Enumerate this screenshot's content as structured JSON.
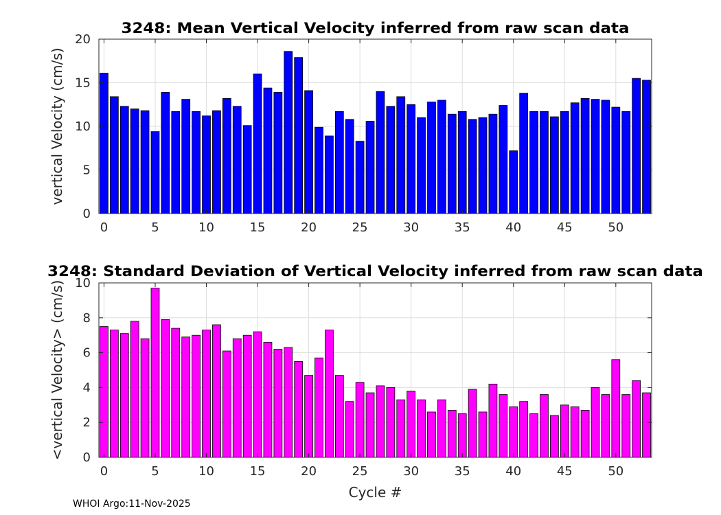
{
  "chart_data": [
    {
      "type": "bar",
      "title": "3248: Mean Vertical Velocity inferred from raw scan data",
      "xlabel": "",
      "ylabel": "vertical Velocity (cm/s)",
      "x": [
        0,
        1,
        2,
        3,
        4,
        5,
        6,
        7,
        8,
        9,
        10,
        11,
        12,
        13,
        14,
        15,
        16,
        17,
        18,
        19,
        20,
        21,
        22,
        23,
        24,
        25,
        26,
        27,
        28,
        29,
        30,
        31,
        32,
        33,
        34,
        35,
        36,
        37,
        38,
        39,
        40,
        41,
        42,
        43,
        44,
        45,
        46,
        47,
        48,
        49,
        50,
        51,
        52,
        53
      ],
      "values": [
        16.1,
        13.4,
        12.3,
        12.0,
        11.8,
        9.4,
        13.9,
        11.7,
        13.1,
        11.7,
        11.2,
        11.8,
        13.2,
        12.3,
        10.1,
        16.0,
        14.4,
        13.9,
        18.6,
        17.9,
        14.1,
        9.9,
        8.9,
        11.7,
        10.8,
        8.3,
        10.6,
        14.0,
        12.3,
        13.4,
        12.5,
        11.0,
        12.8,
        13.0,
        11.4,
        11.7,
        10.8,
        11.0,
        11.4,
        12.4,
        7.2,
        13.8,
        11.7,
        11.7,
        11.1,
        11.7,
        12.7,
        13.2,
        13.1,
        13.0,
        12.2,
        11.7,
        15.5,
        15.3
      ],
      "color": "#0000ff",
      "xlim": [
        -0.5,
        53.5
      ],
      "ylim": [
        0,
        20
      ],
      "xticks": [
        0,
        5,
        10,
        15,
        20,
        25,
        30,
        35,
        40,
        45,
        50
      ],
      "yticks": [
        0,
        5,
        10,
        15,
        20
      ],
      "grid": true
    },
    {
      "type": "bar",
      "title": "3248: Standard Deviation of Vertical Velocity inferred from raw scan data",
      "xlabel": "Cycle #",
      "ylabel": "<vertical Velocity> (cm/s)",
      "x": [
        0,
        1,
        2,
        3,
        4,
        5,
        6,
        7,
        8,
        9,
        10,
        11,
        12,
        13,
        14,
        15,
        16,
        17,
        18,
        19,
        20,
        21,
        22,
        23,
        24,
        25,
        26,
        27,
        28,
        29,
        30,
        31,
        32,
        33,
        34,
        35,
        36,
        37,
        38,
        39,
        40,
        41,
        42,
        43,
        44,
        45,
        46,
        47,
        48,
        49,
        50,
        51,
        52,
        53
      ],
      "values": [
        7.5,
        7.3,
        7.1,
        7.8,
        6.8,
        9.7,
        7.9,
        7.4,
        6.9,
        7.0,
        7.3,
        7.6,
        6.1,
        6.8,
        7.0,
        7.2,
        6.6,
        6.2,
        6.3,
        5.5,
        4.7,
        5.7,
        7.3,
        4.7,
        3.2,
        4.3,
        3.7,
        4.1,
        4.0,
        3.3,
        3.8,
        3.3,
        2.6,
        3.3,
        2.7,
        2.5,
        3.9,
        2.6,
        4.2,
        3.6,
        2.9,
        3.2,
        2.5,
        3.6,
        2.4,
        3.0,
        2.9,
        2.7,
        4.0,
        3.6,
        5.6,
        3.6,
        4.4,
        3.7
      ],
      "color": "#ff00ff",
      "xlim": [
        -0.5,
        53.5
      ],
      "ylim": [
        0,
        10
      ],
      "xticks": [
        0,
        5,
        10,
        15,
        20,
        25,
        30,
        35,
        40,
        45,
        50
      ],
      "yticks": [
        0,
        2,
        4,
        6,
        8,
        10
      ],
      "grid": true
    }
  ],
  "footer": "WHOI Argo:11-Nov-2025"
}
